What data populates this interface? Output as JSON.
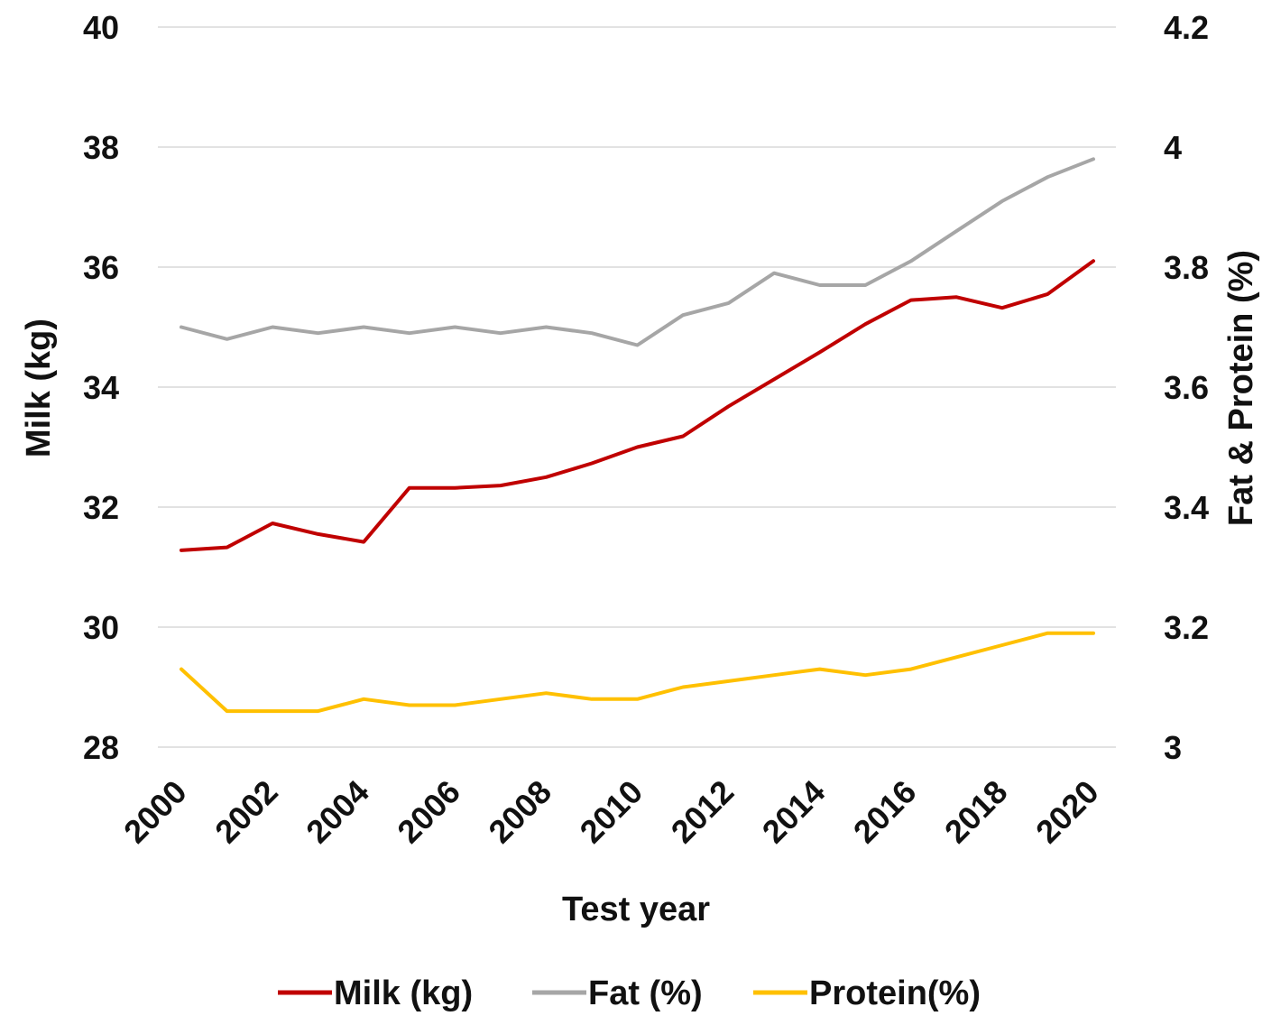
{
  "chart_data": {
    "type": "line",
    "xlabel": "Test year",
    "ylabel_left": "Milk (kg)",
    "ylabel_right": "Fat & Protein (%)",
    "x": [
      2000,
      2001,
      2002,
      2003,
      2004,
      2005,
      2006,
      2007,
      2008,
      2009,
      2010,
      2011,
      2012,
      2013,
      2014,
      2015,
      2016,
      2017,
      2018,
      2019,
      2020
    ],
    "x_tick_labels": [
      "2000",
      "2002",
      "2004",
      "2006",
      "2008",
      "2010",
      "2012",
      "2014",
      "2016",
      "2018",
      "2020"
    ],
    "ylim_left": [
      28,
      40
    ],
    "y_ticks_left": [
      "40",
      "38",
      "36",
      "34",
      "32",
      "30",
      "28"
    ],
    "ylim_right": [
      3,
      4.2
    ],
    "y_ticks_right": [
      "4.2",
      "4",
      "3.8",
      "3.6",
      "3.4",
      "3.2",
      "3"
    ],
    "grid": true,
    "legend_position": "bottom",
    "series": [
      {
        "name": "Milk (kg)",
        "axis": "left",
        "color": "#c00000",
        "values": [
          31.28,
          31.33,
          31.73,
          31.55,
          31.42,
          32.32,
          32.32,
          32.36,
          32.5,
          32.73,
          33.0,
          33.18,
          33.68,
          34.13,
          34.58,
          35.05,
          35.45,
          35.5,
          35.32,
          35.55,
          36.1
        ]
      },
      {
        "name": "Fat (%)",
        "axis": "right",
        "color": "#a6a6a6",
        "values": [
          3.7,
          3.68,
          3.7,
          3.69,
          3.7,
          3.69,
          3.7,
          3.69,
          3.7,
          3.69,
          3.67,
          3.72,
          3.74,
          3.79,
          3.77,
          3.77,
          3.81,
          3.86,
          3.91,
          3.95,
          3.98
        ]
      },
      {
        "name": "Protein(%)",
        "axis": "right",
        "color": "#ffc000",
        "values": [
          3.13,
          3.06,
          3.06,
          3.06,
          3.08,
          3.07,
          3.07,
          3.08,
          3.09,
          3.08,
          3.08,
          3.1,
          3.11,
          3.12,
          3.13,
          3.12,
          3.13,
          3.15,
          3.17,
          3.19,
          3.19
        ]
      }
    ]
  }
}
